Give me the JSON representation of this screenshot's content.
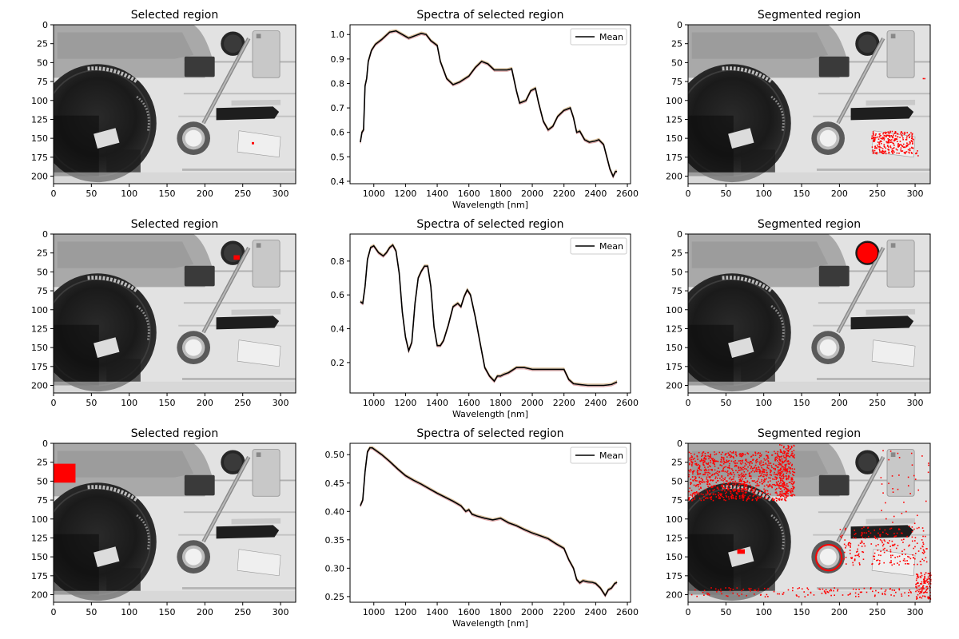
{
  "figure": {
    "image_titles": {
      "selected": "Selected region",
      "segmented": "Segmented region"
    },
    "image_axes": {
      "x_ticks": [
        "0",
        "50",
        "100",
        "150",
        "200",
        "250",
        "300"
      ],
      "y_ticks": [
        "0",
        "25",
        "50",
        "75",
        "100",
        "125",
        "150",
        "175",
        "200"
      ]
    }
  },
  "chart_data": [
    {
      "type": "line",
      "title": "Spectra of selected region",
      "xlabel": "Wavelength [nm]",
      "ylabel": "",
      "xlim": [
        850,
        2620
      ],
      "ylim": [
        0.39,
        1.04
      ],
      "x_ticks": [
        1000,
        1200,
        1400,
        1600,
        1800,
        2000,
        2200,
        2400,
        2600
      ],
      "y_ticks": [
        0.4,
        0.5,
        0.6,
        0.7,
        0.8,
        0.9,
        1.0
      ],
      "y_tick_labels": [
        "0.4",
        "0.5",
        "0.6",
        "0.7",
        "0.8",
        "0.9",
        "1.0"
      ],
      "legend": {
        "position": "top-right",
        "entries": [
          "Mean"
        ]
      },
      "series": [
        {
          "name": "Mean",
          "color": "#000000",
          "points": [
            [
              915,
              0.56
            ],
            [
              925,
              0.6
            ],
            [
              935,
              0.61
            ],
            [
              945,
              0.79
            ],
            [
              955,
              0.82
            ],
            [
              965,
              0.89
            ],
            [
              985,
              0.935
            ],
            [
              1010,
              0.96
            ],
            [
              1050,
              0.98
            ],
            [
              1100,
              1.01
            ],
            [
              1140,
              1.015
            ],
            [
              1180,
              1.0
            ],
            [
              1220,
              0.985
            ],
            [
              1260,
              0.995
            ],
            [
              1300,
              1.005
            ],
            [
              1330,
              1.0
            ],
            [
              1360,
              0.975
            ],
            [
              1400,
              0.955
            ],
            [
              1420,
              0.89
            ],
            [
              1460,
              0.82
            ],
            [
              1500,
              0.795
            ],
            [
              1540,
              0.805
            ],
            [
              1600,
              0.83
            ],
            [
              1640,
              0.865
            ],
            [
              1680,
              0.89
            ],
            [
              1720,
              0.88
            ],
            [
              1760,
              0.855
            ],
            [
              1800,
              0.855
            ],
            [
              1840,
              0.855
            ],
            [
              1870,
              0.86
            ],
            [
              1900,
              0.77
            ],
            [
              1920,
              0.72
            ],
            [
              1960,
              0.73
            ],
            [
              1990,
              0.77
            ],
            [
              2020,
              0.78
            ],
            [
              2040,
              0.72
            ],
            [
              2070,
              0.645
            ],
            [
              2100,
              0.61
            ],
            [
              2130,
              0.625
            ],
            [
              2160,
              0.665
            ],
            [
              2200,
              0.69
            ],
            [
              2240,
              0.7
            ],
            [
              2260,
              0.66
            ],
            [
              2280,
              0.6
            ],
            [
              2300,
              0.605
            ],
            [
              2330,
              0.57
            ],
            [
              2360,
              0.56
            ],
            [
              2400,
              0.565
            ],
            [
              2420,
              0.57
            ],
            [
              2450,
              0.55
            ],
            [
              2490,
              0.45
            ],
            [
              2510,
              0.42
            ],
            [
              2525,
              0.44
            ],
            [
              2535,
              0.44
            ]
          ]
        }
      ],
      "shade_colors": [
        "#c8a06a",
        "#d08080"
      ]
    },
    {
      "type": "line",
      "title": "Spectra of selected region",
      "xlabel": "Wavelength [nm]",
      "ylabel": "",
      "xlim": [
        850,
        2620
      ],
      "ylim": [
        0.02,
        0.96
      ],
      "x_ticks": [
        1000,
        1200,
        1400,
        1600,
        1800,
        2000,
        2200,
        2400,
        2600
      ],
      "y_ticks": [
        0.2,
        0.4,
        0.6,
        0.8
      ],
      "y_tick_labels": [
        "0.2",
        "0.4",
        "0.6",
        "0.8"
      ],
      "legend": {
        "position": "top-right",
        "entries": [
          "Mean"
        ]
      },
      "series": [
        {
          "name": "Mean",
          "color": "#000000",
          "points": [
            [
              915,
              0.56
            ],
            [
              930,
              0.55
            ],
            [
              945,
              0.65
            ],
            [
              960,
              0.81
            ],
            [
              980,
              0.88
            ],
            [
              1000,
              0.89
            ],
            [
              1030,
              0.85
            ],
            [
              1060,
              0.83
            ],
            [
              1080,
              0.85
            ],
            [
              1100,
              0.88
            ],
            [
              1120,
              0.895
            ],
            [
              1140,
              0.86
            ],
            [
              1160,
              0.73
            ],
            [
              1180,
              0.5
            ],
            [
              1200,
              0.35
            ],
            [
              1220,
              0.27
            ],
            [
              1240,
              0.32
            ],
            [
              1260,
              0.55
            ],
            [
              1280,
              0.7
            ],
            [
              1300,
              0.74
            ],
            [
              1320,
              0.77
            ],
            [
              1340,
              0.77
            ],
            [
              1360,
              0.65
            ],
            [
              1380,
              0.41
            ],
            [
              1400,
              0.3
            ],
            [
              1420,
              0.3
            ],
            [
              1440,
              0.33
            ],
            [
              1470,
              0.42
            ],
            [
              1500,
              0.53
            ],
            [
              1530,
              0.55
            ],
            [
              1550,
              0.53
            ],
            [
              1570,
              0.59
            ],
            [
              1590,
              0.63
            ],
            [
              1610,
              0.6
            ],
            [
              1640,
              0.47
            ],
            [
              1670,
              0.32
            ],
            [
              1700,
              0.17
            ],
            [
              1730,
              0.12
            ],
            [
              1760,
              0.09
            ],
            [
              1780,
              0.12
            ],
            [
              1800,
              0.12
            ],
            [
              1820,
              0.13
            ],
            [
              1850,
              0.14
            ],
            [
              1900,
              0.17
            ],
            [
              1950,
              0.17
            ],
            [
              2000,
              0.16
            ],
            [
              2050,
              0.16
            ],
            [
              2100,
              0.16
            ],
            [
              2150,
              0.16
            ],
            [
              2200,
              0.16
            ],
            [
              2230,
              0.1
            ],
            [
              2260,
              0.075
            ],
            [
              2300,
              0.07
            ],
            [
              2350,
              0.065
            ],
            [
              2400,
              0.065
            ],
            [
              2450,
              0.065
            ],
            [
              2500,
              0.07
            ],
            [
              2535,
              0.085
            ]
          ]
        }
      ],
      "shade_colors": [
        "#c8a06a",
        "#d08080"
      ]
    },
    {
      "type": "line",
      "title": "Spectra of selected region",
      "xlabel": "Wavelength [nm]",
      "ylabel": "",
      "xlim": [
        850,
        2620
      ],
      "ylim": [
        0.24,
        0.52
      ],
      "x_ticks": [
        1000,
        1200,
        1400,
        1600,
        1800,
        2000,
        2200,
        2400,
        2600
      ],
      "y_ticks": [
        0.25,
        0.3,
        0.35,
        0.4,
        0.45,
        0.5
      ],
      "y_tick_labels": [
        "0.25",
        "0.30",
        "0.35",
        "0.40",
        "0.45",
        "0.50"
      ],
      "legend": {
        "position": "top-right",
        "entries": [
          "Mean"
        ]
      },
      "series": [
        {
          "name": "Mean",
          "color": "#000000",
          "points": [
            [
              915,
              0.41
            ],
            [
              930,
              0.42
            ],
            [
              945,
              0.47
            ],
            [
              960,
              0.505
            ],
            [
              975,
              0.512
            ],
            [
              990,
              0.512
            ],
            [
              1010,
              0.508
            ],
            [
              1050,
              0.5
            ],
            [
              1100,
              0.488
            ],
            [
              1150,
              0.475
            ],
            [
              1200,
              0.463
            ],
            [
              1250,
              0.455
            ],
            [
              1300,
              0.448
            ],
            [
              1350,
              0.44
            ],
            [
              1400,
              0.432
            ],
            [
              1450,
              0.425
            ],
            [
              1500,
              0.418
            ],
            [
              1550,
              0.41
            ],
            [
              1580,
              0.4
            ],
            [
              1600,
              0.403
            ],
            [
              1620,
              0.395
            ],
            [
              1650,
              0.392
            ],
            [
              1700,
              0.388
            ],
            [
              1750,
              0.385
            ],
            [
              1800,
              0.388
            ],
            [
              1850,
              0.38
            ],
            [
              1900,
              0.375
            ],
            [
              1950,
              0.368
            ],
            [
              2000,
              0.362
            ],
            [
              2050,
              0.357
            ],
            [
              2100,
              0.352
            ],
            [
              2150,
              0.343
            ],
            [
              2200,
              0.335
            ],
            [
              2230,
              0.315
            ],
            [
              2260,
              0.3
            ],
            [
              2280,
              0.28
            ],
            [
              2300,
              0.274
            ],
            [
              2320,
              0.278
            ],
            [
              2350,
              0.276
            ],
            [
              2380,
              0.275
            ],
            [
              2400,
              0.273
            ],
            [
              2430,
              0.265
            ],
            [
              2460,
              0.252
            ],
            [
              2480,
              0.262
            ],
            [
              2500,
              0.265
            ],
            [
              2520,
              0.273
            ],
            [
              2535,
              0.275
            ]
          ]
        }
      ],
      "shade_colors": [
        "#c8a06a",
        "#d08080"
      ]
    }
  ]
}
